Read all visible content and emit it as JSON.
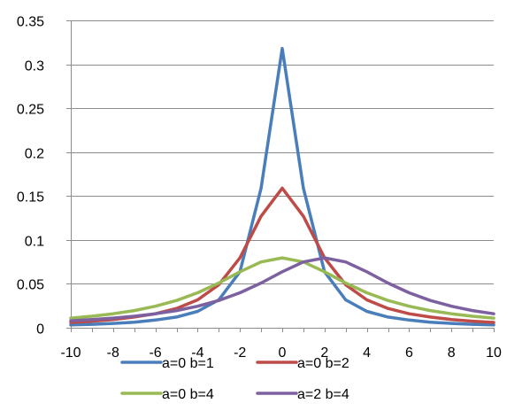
{
  "chart_data": {
    "type": "line",
    "title": "",
    "xlabel": "",
    "ylabel": "",
    "x": [
      -10,
      -9,
      -8,
      -7,
      -6,
      -5,
      -4,
      -3,
      -2,
      -1,
      0,
      1,
      2,
      3,
      4,
      5,
      6,
      7,
      8,
      9,
      10
    ],
    "xlim": [
      -10,
      10
    ],
    "ylim": [
      0,
      0.35
    ],
    "xticks": [
      -10,
      -8,
      -6,
      -4,
      -2,
      0,
      2,
      4,
      6,
      8,
      10
    ],
    "xtick_labels": [
      "-10",
      "-8",
      "-6",
      "-4",
      "-2",
      "0",
      "2",
      "4",
      "6",
      "8",
      "10"
    ],
    "yticks": [
      0,
      0.05,
      0.1,
      0.15,
      0.2,
      0.25,
      0.3,
      0.35
    ],
    "ytick_labels": [
      "0",
      "0.05",
      "0.1",
      "0.15",
      "0.2",
      "0.25",
      "0.3",
      "0.35"
    ],
    "grid": "horizontal",
    "legend_position": "bottom",
    "series": [
      {
        "name": "a=0 b=1",
        "color": "#4a7ebb",
        "values": [
          0.0032,
          0.0039,
          0.0049,
          0.0064,
          0.0088,
          0.0122,
          0.0187,
          0.0318,
          0.0637,
          0.159,
          0.318,
          0.159,
          0.0637,
          0.0318,
          0.0187,
          0.0122,
          0.0088,
          0.0064,
          0.0049,
          0.0039,
          0.0032
        ]
      },
      {
        "name": "a=0 b=2",
        "color": "#be4b48",
        "values": [
          0.0061,
          0.0075,
          0.0094,
          0.0122,
          0.0159,
          0.022,
          0.0318,
          0.049,
          0.0796,
          0.127,
          0.159,
          0.127,
          0.0796,
          0.049,
          0.0318,
          0.022,
          0.0159,
          0.0122,
          0.0094,
          0.0075,
          0.0061
        ]
      },
      {
        "name": "a=0 b=4",
        "color": "#98b954",
        "values": [
          0.011,
          0.0131,
          0.0159,
          0.0196,
          0.0245,
          0.0311,
          0.0398,
          0.0509,
          0.0637,
          0.0749,
          0.0796,
          0.0749,
          0.0637,
          0.0509,
          0.0398,
          0.0311,
          0.0245,
          0.0196,
          0.0159,
          0.0131,
          0.011
        ]
      },
      {
        "name": "a=2 b=4",
        "color": "#7d60a0",
        "values": [
          0.008,
          0.0094,
          0.011,
          0.0131,
          0.0159,
          0.0196,
          0.0245,
          0.0311,
          0.0398,
          0.0509,
          0.0637,
          0.0749,
          0.0796,
          0.0749,
          0.0637,
          0.0509,
          0.0398,
          0.0311,
          0.0245,
          0.0196,
          0.0159
        ]
      }
    ]
  }
}
